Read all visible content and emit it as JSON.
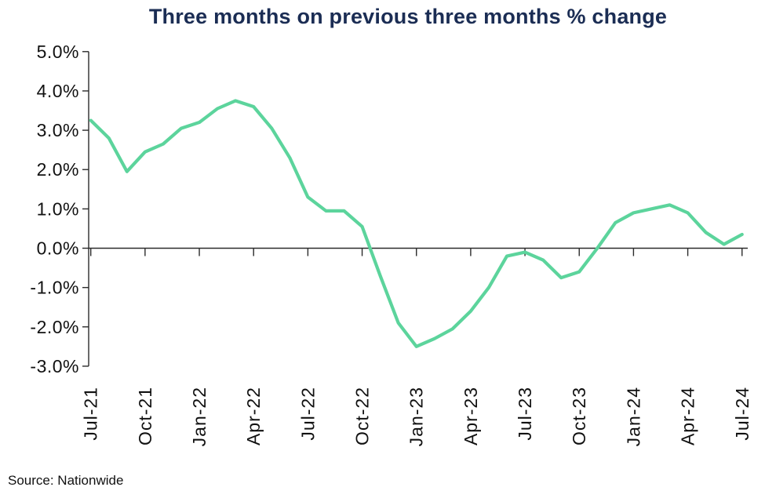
{
  "chart_data": {
    "type": "line",
    "title": "Three months on previous three months % change",
    "source_note": "Source: Nationwide",
    "x": [
      "Jul-21",
      "Aug-21",
      "Sep-21",
      "Oct-21",
      "Nov-21",
      "Dec-21",
      "Jan-22",
      "Feb-22",
      "Mar-22",
      "Apr-22",
      "May-22",
      "Jun-22",
      "Jul-22",
      "Aug-22",
      "Sep-22",
      "Oct-22",
      "Nov-22",
      "Dec-22",
      "Jan-23",
      "Feb-23",
      "Mar-23",
      "Apr-23",
      "May-23",
      "Jun-23",
      "Jul-23",
      "Aug-23",
      "Sep-23",
      "Oct-23",
      "Nov-23",
      "Dec-23",
      "Jan-24",
      "Feb-24",
      "Mar-24",
      "Apr-24",
      "May-24",
      "Jun-24",
      "Jul-24"
    ],
    "values": [
      3.25,
      2.8,
      1.95,
      2.45,
      2.65,
      3.05,
      3.2,
      3.55,
      3.75,
      3.6,
      3.05,
      2.3,
      1.3,
      0.95,
      0.95,
      0.55,
      -0.7,
      -1.9,
      -2.5,
      -2.3,
      -2.05,
      -1.6,
      -1.0,
      -0.2,
      -0.1,
      -0.3,
      -0.75,
      -0.6,
      0.0,
      0.65,
      0.9,
      1.0,
      1.1,
      0.9,
      0.4,
      0.1,
      0.35
    ],
    "x_tick_labels": [
      "Jul-21",
      "Oct-21",
      "Jan-22",
      "Apr-22",
      "Jul-22",
      "Oct-22",
      "Jan-23",
      "Apr-23",
      "Jul-23",
      "Oct-23",
      "Jan-24",
      "Apr-24",
      "Jul-24"
    ],
    "y_ticks": [
      5,
      4,
      3,
      2,
      1,
      0,
      -1,
      -2,
      -3
    ],
    "y_tick_labels": [
      "5.0%",
      "4.0%",
      "3.0%",
      "2.0%",
      "1.0%",
      "0.0%",
      "-1.0%",
      "-2.0%",
      "-3.0%"
    ],
    "ylim": [
      -3,
      5
    ],
    "grid": "off",
    "legend": "none",
    "line_color": "#5cd49c",
    "title_color": "#1b2d54",
    "axis_color": "#2b2b2b",
    "text_color": "#111111"
  }
}
